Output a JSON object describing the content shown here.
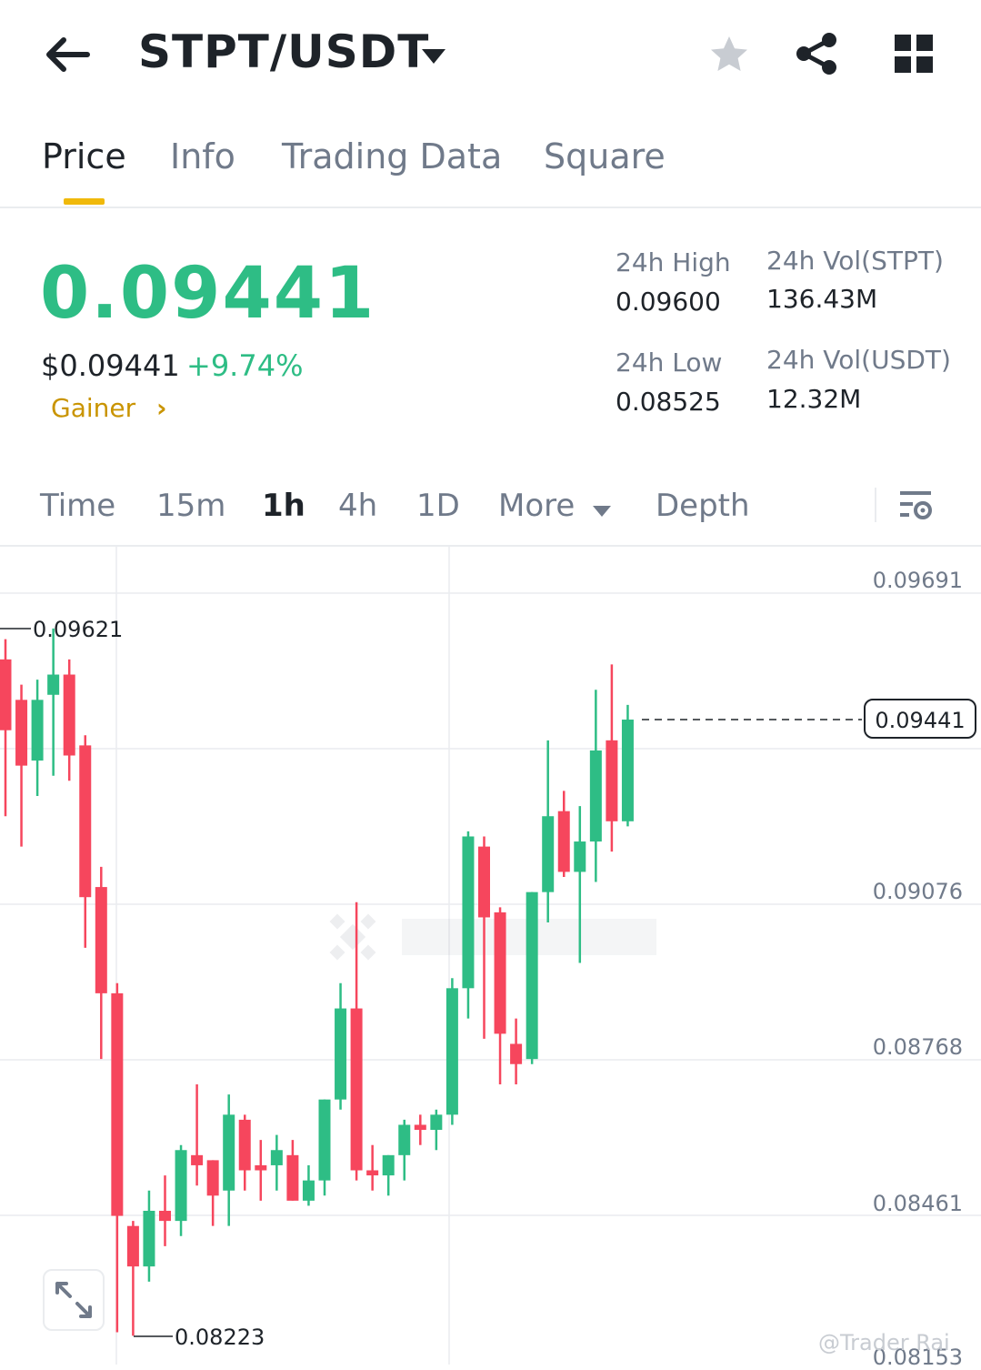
{
  "header": {
    "pair": "STPT/USDT",
    "icons": [
      "back-arrow-icon",
      "dropdown-caret-icon",
      "star-icon",
      "share-icon",
      "grid-icon"
    ]
  },
  "tabs": [
    {
      "label": "Price",
      "active": true
    },
    {
      "label": "Info",
      "active": false
    },
    {
      "label": "Trading Data",
      "active": false
    },
    {
      "label": "Square",
      "active": false
    }
  ],
  "ticker": {
    "last_price": "0.09441",
    "usd_price": "$0.09441",
    "change": "+9.74%",
    "tag": "Gainer",
    "high_label": "24h High",
    "high_value": "0.09600",
    "low_label": "24h Low",
    "low_value": "0.08525",
    "vol_base_label": "24h Vol(STPT)",
    "vol_base_value": "136.43M",
    "vol_quote_label": "24h Vol(USDT)",
    "vol_quote_value": "12.32M"
  },
  "timeframes": [
    {
      "label": "Time",
      "active": false
    },
    {
      "label": "15m",
      "active": false
    },
    {
      "label": "1h",
      "active": true
    },
    {
      "label": "4h",
      "active": false
    },
    {
      "label": "1D",
      "active": false
    },
    {
      "label": "More",
      "active": false
    },
    {
      "label": "Depth",
      "active": false
    }
  ],
  "chart": {
    "axis_labels": [
      "0.09691",
      "0.09076",
      "0.08768",
      "0.08461",
      "0.08153"
    ],
    "high_marker": "0.09621",
    "low_marker": "0.08223",
    "current_price": "0.09441",
    "watermark": "@Trader Rai",
    "colors": {
      "up": "#2ebd85",
      "down": "#f6465d",
      "grid": "#eaecef",
      "accent": "#f0b90b"
    }
  },
  "chart_data": {
    "type": "candlestick",
    "interval": "1h",
    "y_ticks": [
      0.09691,
      0.09076,
      0.08768,
      0.08461,
      0.08153
    ],
    "high_label": 0.09621,
    "low_label": 0.08223,
    "last_price": 0.09441,
    "candles": [
      {
        "o": 0.0956,
        "h": 0.096,
        "l": 0.0925,
        "c": 0.0942
      },
      {
        "o": 0.0948,
        "h": 0.0951,
        "l": 0.0919,
        "c": 0.0935
      },
      {
        "o": 0.0936,
        "h": 0.0952,
        "l": 0.0929,
        "c": 0.0948
      },
      {
        "o": 0.0949,
        "h": 0.09621,
        "l": 0.0933,
        "c": 0.0953
      },
      {
        "o": 0.0953,
        "h": 0.0956,
        "l": 0.0932,
        "c": 0.0937
      },
      {
        "o": 0.0939,
        "h": 0.0941,
        "l": 0.0899,
        "c": 0.0909
      },
      {
        "o": 0.0911,
        "h": 0.0915,
        "l": 0.0877,
        "c": 0.089
      },
      {
        "o": 0.089,
        "h": 0.0892,
        "l": 0.0823,
        "c": 0.0846
      },
      {
        "o": 0.0844,
        "h": 0.0845,
        "l": 0.08223,
        "c": 0.0836
      },
      {
        "o": 0.0836,
        "h": 0.0851,
        "l": 0.0833,
        "c": 0.0847
      },
      {
        "o": 0.0847,
        "h": 0.0854,
        "l": 0.084,
        "c": 0.0845
      },
      {
        "o": 0.0845,
        "h": 0.086,
        "l": 0.0842,
        "c": 0.0859
      },
      {
        "o": 0.0858,
        "h": 0.0872,
        "l": 0.0852,
        "c": 0.0856
      },
      {
        "o": 0.0857,
        "h": 0.0857,
        "l": 0.0844,
        "c": 0.085
      },
      {
        "o": 0.0851,
        "h": 0.087,
        "l": 0.0844,
        "c": 0.0866
      },
      {
        "o": 0.0865,
        "h": 0.0866,
        "l": 0.0851,
        "c": 0.0855
      },
      {
        "o": 0.0856,
        "h": 0.0861,
        "l": 0.0849,
        "c": 0.0855
      },
      {
        "o": 0.0856,
        "h": 0.0862,
        "l": 0.0851,
        "c": 0.0859
      },
      {
        "o": 0.0858,
        "h": 0.0861,
        "l": 0.0849,
        "c": 0.0849
      },
      {
        "o": 0.0849,
        "h": 0.0856,
        "l": 0.0848,
        "c": 0.0853
      },
      {
        "o": 0.0853,
        "h": 0.0869,
        "l": 0.085,
        "c": 0.0869
      },
      {
        "o": 0.0869,
        "h": 0.0892,
        "l": 0.0867,
        "c": 0.0887
      },
      {
        "o": 0.0887,
        "h": 0.0908,
        "l": 0.0853,
        "c": 0.0855
      },
      {
        "o": 0.0855,
        "h": 0.086,
        "l": 0.0851,
        "c": 0.0854
      },
      {
        "o": 0.0854,
        "h": 0.0858,
        "l": 0.085,
        "c": 0.0858
      },
      {
        "o": 0.0858,
        "h": 0.0865,
        "l": 0.0853,
        "c": 0.0864
      },
      {
        "o": 0.0864,
        "h": 0.0866,
        "l": 0.086,
        "c": 0.0863
      },
      {
        "o": 0.0863,
        "h": 0.0867,
        "l": 0.0859,
        "c": 0.0866
      },
      {
        "o": 0.0866,
        "h": 0.0893,
        "l": 0.0864,
        "c": 0.0891
      },
      {
        "o": 0.0891,
        "h": 0.0922,
        "l": 0.0885,
        "c": 0.0921
      },
      {
        "o": 0.0919,
        "h": 0.0921,
        "l": 0.0881,
        "c": 0.0905
      },
      {
        "o": 0.0906,
        "h": 0.0907,
        "l": 0.0872,
        "c": 0.0882
      },
      {
        "o": 0.088,
        "h": 0.0885,
        "l": 0.0872,
        "c": 0.0876
      },
      {
        "o": 0.0877,
        "h": 0.091,
        "l": 0.0876,
        "c": 0.091
      },
      {
        "o": 0.091,
        "h": 0.094,
        "l": 0.0904,
        "c": 0.0925
      },
      {
        "o": 0.0926,
        "h": 0.093,
        "l": 0.0913,
        "c": 0.0914
      },
      {
        "o": 0.0914,
        "h": 0.0927,
        "l": 0.0896,
        "c": 0.092
      },
      {
        "o": 0.092,
        "h": 0.095,
        "l": 0.0912,
        "c": 0.0938
      },
      {
        "o": 0.094,
        "h": 0.0955,
        "l": 0.0918,
        "c": 0.0924
      },
      {
        "o": 0.0924,
        "h": 0.0947,
        "l": 0.0923,
        "c": 0.09441
      }
    ]
  }
}
